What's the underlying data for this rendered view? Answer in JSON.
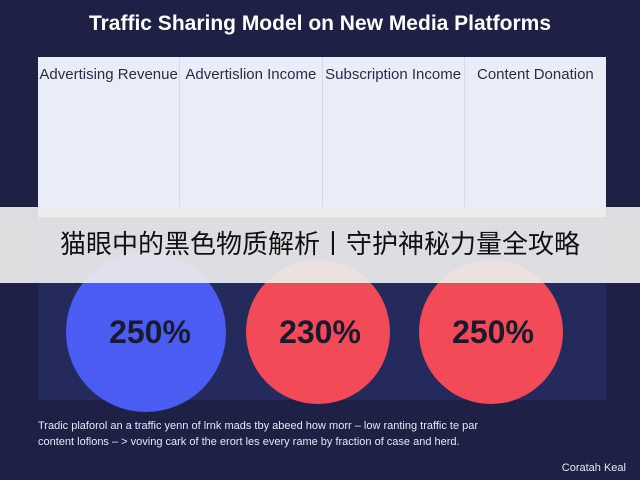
{
  "header": {
    "title": "Traffic Sharing Model on New Media Platforms"
  },
  "columns": [
    "Advertising Revenue",
    "Advertislion Income",
    "Subscription Income",
    "Content Donation"
  ],
  "banner": "猫眼中的黑色物质解析丨守护神秘力量全攻略",
  "circles": [
    "250%",
    "230%",
    "250%"
  ],
  "footer": {
    "lines": [
      "Tradic plaforol an a traffic yenn of lrnk mads tby abeed how morr – low ranting traffic te par",
      "content loflons – > voving cark of the erort les every rame by fraction of case and herd."
    ],
    "credit": "Coratah Keal"
  }
}
